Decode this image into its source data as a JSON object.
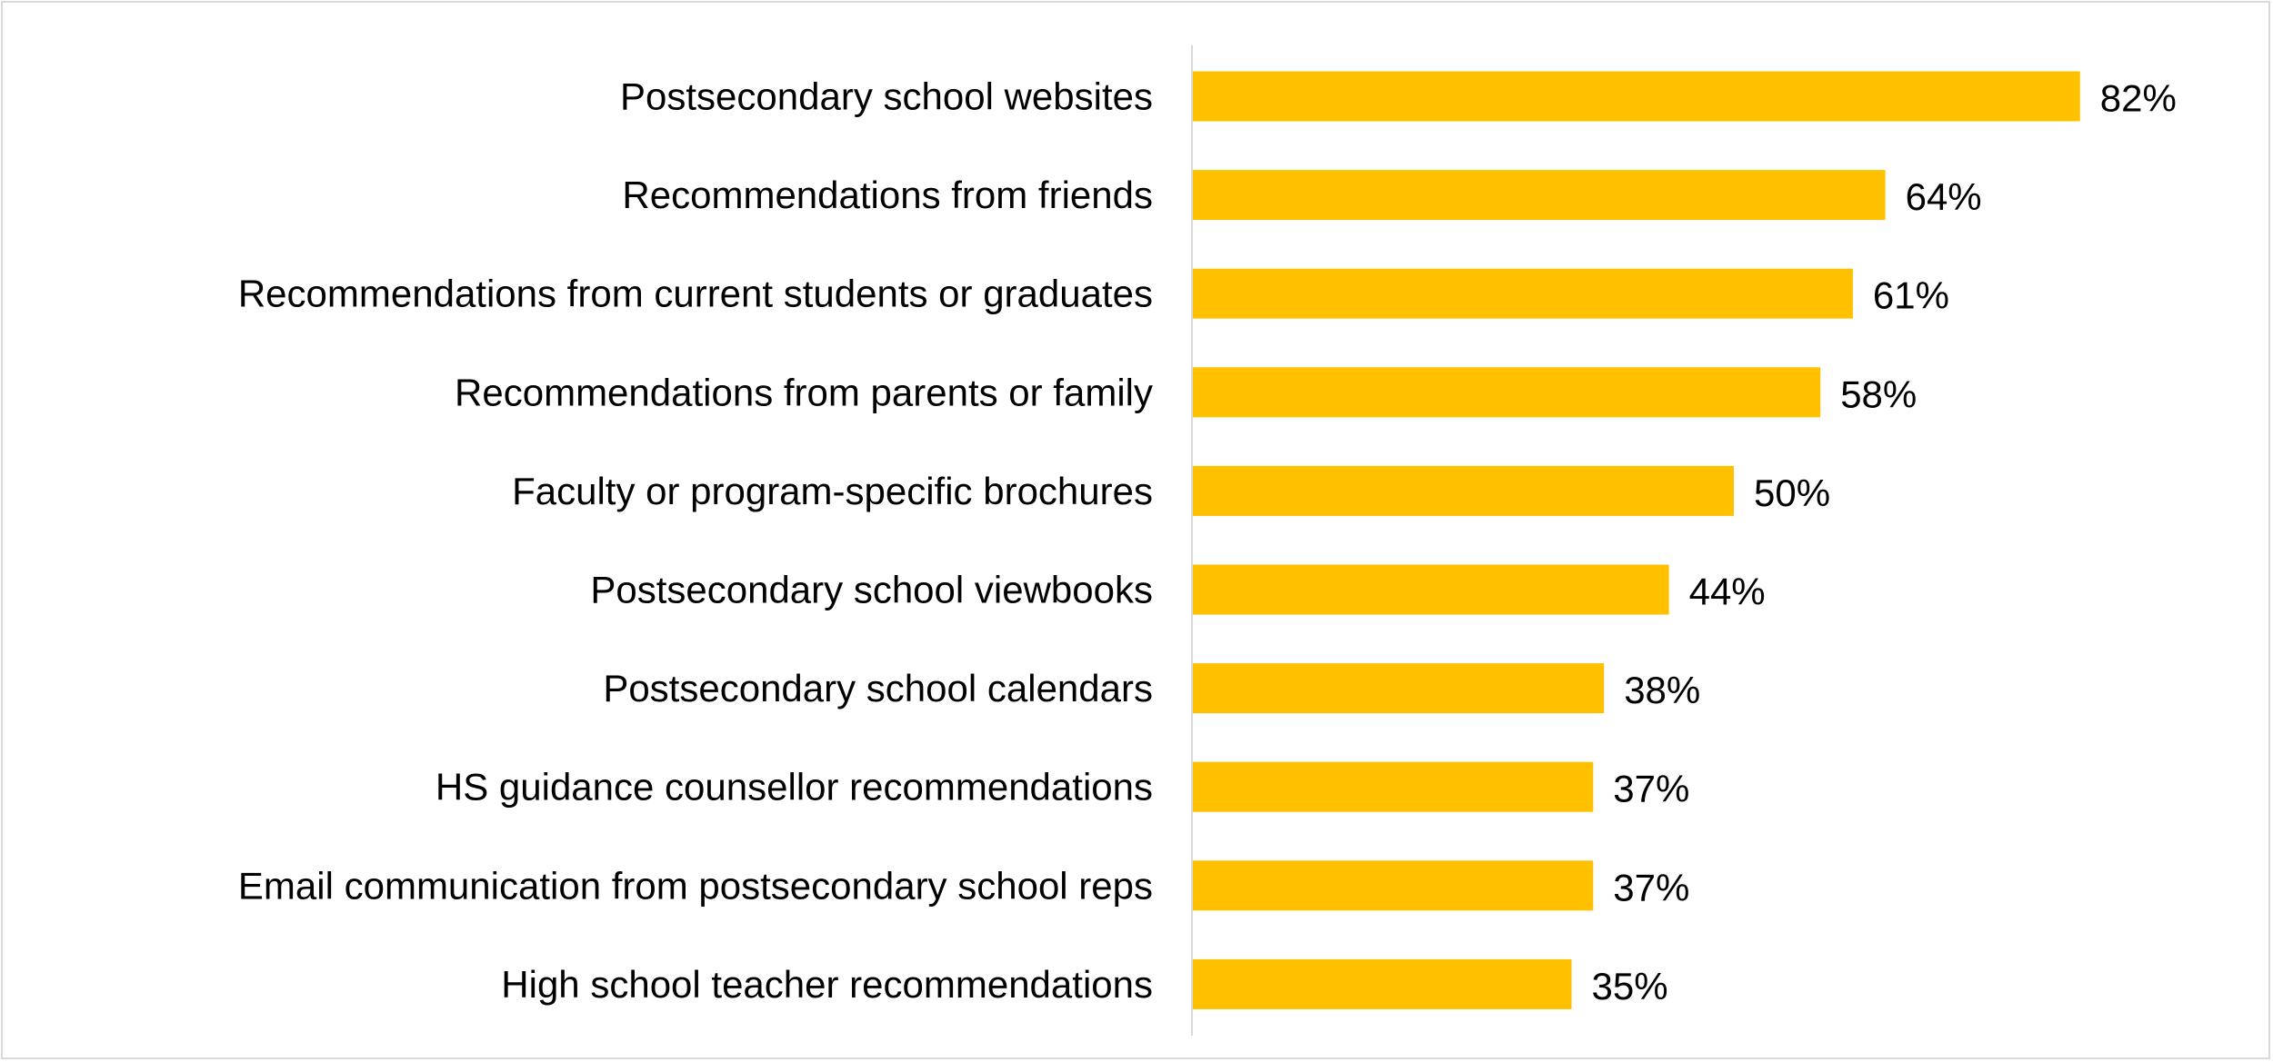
{
  "chart_data": {
    "type": "bar",
    "orientation": "horizontal",
    "categories": [
      "Postsecondary school websites",
      "Recommendations from friends",
      "Recommendations from current students or graduates",
      "Recommendations from parents or family",
      "Faculty or program-specific brochures",
      "Postsecondary school viewbooks",
      "Postsecondary school calendars",
      "HS guidance counsellor recommendations",
      "Email communication from postsecondary school reps",
      "High school teacher recommendations"
    ],
    "values": [
      82,
      64,
      61,
      58,
      50,
      44,
      38,
      37,
      37,
      35
    ],
    "value_labels": [
      "82%",
      "64%",
      "61%",
      "58%",
      "50%",
      "44%",
      "38%",
      "37%",
      "37%",
      "35%"
    ],
    "title": "",
    "xlabel": "",
    "ylabel": "",
    "xlim": [
      0,
      100
    ],
    "grid": false,
    "legend": "none",
    "bar_color": "#FFC000",
    "axis_color": "#d9d9d9"
  }
}
